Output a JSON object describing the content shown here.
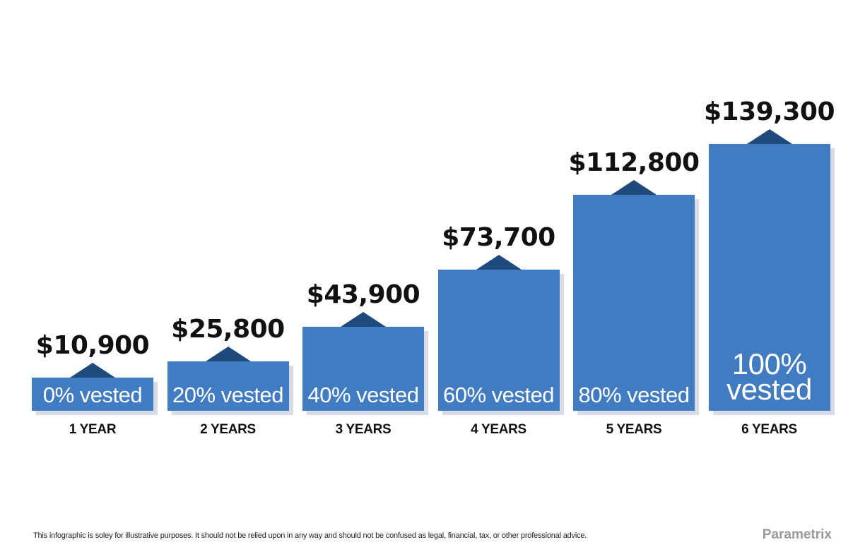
{
  "chart_data": {
    "type": "bar",
    "categories": [
      "1 YEAR",
      "2 YEARS",
      "3 YEARS",
      "4 YEARS",
      "5 YEARS",
      "6 YEARS"
    ],
    "values": [
      10900,
      25800,
      43900,
      73700,
      112800,
      139300
    ],
    "value_labels": [
      "$10,900",
      "$25,800",
      "$43,900",
      "$73,700",
      "$112,800",
      "$139,300"
    ],
    "vested_labels": [
      "0% vested",
      "20% vested",
      "40% vested",
      "60% vested",
      "80% vested",
      "100% vested"
    ],
    "vested_percent": [
      0,
      20,
      40,
      60,
      80,
      100
    ],
    "title": "",
    "xlabel": "",
    "ylabel": "",
    "grid": false,
    "colors": {
      "bar": "#417bc1",
      "marker": "#1f4a7c",
      "shadow": "#d7dce6",
      "text": "#111111"
    }
  },
  "footer": {
    "disclaimer": "This infographic is soley for illustrative purposes. It should not be relied upon in any way and should not be confused as legal, financial, tax, or other professional advice.",
    "brand": "Parametrix"
  }
}
